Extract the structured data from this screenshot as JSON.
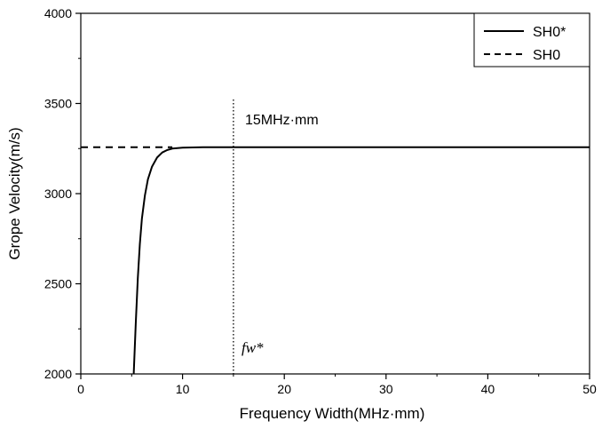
{
  "chart_data": {
    "type": "line",
    "title": "",
    "xlabel": "Frequency Width(MHz·mm)",
    "ylabel": "Grope Velocity(m/s)",
    "xlim": [
      0,
      50
    ],
    "ylim": [
      2000,
      4000
    ],
    "xticks": [
      0,
      10,
      20,
      30,
      40,
      50
    ],
    "yticks": [
      2000,
      2500,
      3000,
      3500,
      4000
    ],
    "xtick_labels": [
      "0",
      "10",
      "20",
      "30",
      "40",
      "50"
    ],
    "ytick_labels": [
      "2000",
      "2500",
      "3000",
      "3500",
      "4000"
    ],
    "grid": false,
    "legend_position": "top-right",
    "series": [
      {
        "name": "SH0*",
        "style": "solid",
        "x": [
          5.2,
          5.4,
          5.6,
          5.8,
          6.0,
          6.3,
          6.6,
          7.0,
          7.5,
          8.0,
          8.5,
          9.0,
          10.0,
          12.0,
          15.0,
          20.0,
          30.0,
          40.0,
          50.0
        ],
        "y": [
          2000,
          2280,
          2530,
          2720,
          2860,
          2990,
          3080,
          3150,
          3200,
          3228,
          3242,
          3250,
          3255,
          3257,
          3257,
          3257,
          3257,
          3257,
          3257
        ]
      },
      {
        "name": "SH0",
        "style": "dashed",
        "x": [
          0,
          9.0
        ],
        "y": [
          3257,
          3257
        ]
      }
    ],
    "vline": {
      "x": 15,
      "style": "dotted"
    },
    "annotations": {
      "top": "15MHz·mm",
      "bottom": "fw*"
    }
  }
}
